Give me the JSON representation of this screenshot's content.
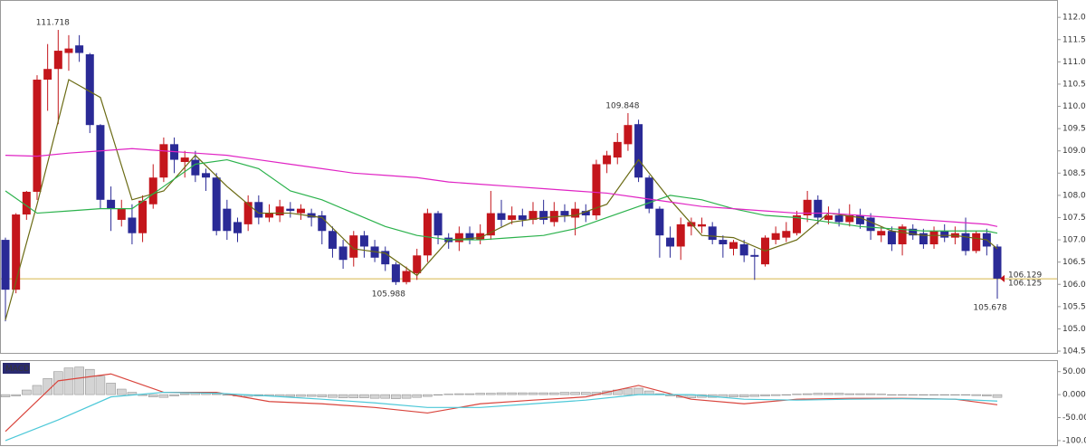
{
  "chart_data": [
    {
      "type": "candlestick",
      "up_color": "#c4161c",
      "down_color": "#2a2a96",
      "ylim": [
        104.46,
        112.39
      ],
      "yticks": [
        {
          "value": 104.5,
          "label": "104.500"
        },
        {
          "value": 105,
          "label": "105.000"
        },
        {
          "value": 105.5,
          "label": "105.500"
        },
        {
          "value": 106,
          "label": "106.000"
        },
        {
          "value": 106.5,
          "label": "106.500"
        },
        {
          "value": 107,
          "label": "107.000"
        },
        {
          "value": 107.5,
          "label": "107.500"
        },
        {
          "value": 108,
          "label": "108.000"
        },
        {
          "value": 108.5,
          "label": "108.500"
        },
        {
          "value": 109,
          "label": "109.000"
        },
        {
          "value": 109.5,
          "label": "109.500"
        },
        {
          "value": 110,
          "label": "110.000"
        },
        {
          "value": 110.5,
          "label": "110.500"
        },
        {
          "value": 111,
          "label": "111.000"
        },
        {
          "value": 111.5,
          "label": "111.500"
        },
        {
          "value": 112,
          "label": "112.000"
        }
      ],
      "open": [
        107.0,
        105.88,
        107.57,
        108.08,
        110.6,
        110.84,
        111.2,
        111.37,
        111.17,
        109.58,
        107.9,
        107.45,
        107.5,
        107.15,
        107.8,
        108.4,
        109.15,
        108.75,
        108.8,
        108.5,
        108.4,
        107.7,
        107.4,
        107.35,
        107.85,
        107.5,
        107.55,
        107.7,
        107.6,
        107.6,
        107.55,
        107.2,
        106.85,
        106.6,
        107.1,
        106.85,
        106.75,
        106.45,
        106.05,
        106.25,
        106.65,
        107.6,
        107.05,
        106.95,
        107.15,
        107.0,
        107.1,
        107.6,
        107.45,
        107.55,
        107.45,
        107.65,
        107.4,
        107.65,
        107.5,
        107.65,
        107.55,
        108.7,
        108.85,
        109.15,
        109.6,
        108.4,
        107.7,
        107.05,
        106.85,
        107.3,
        107.3,
        107.3,
        107.0,
        106.8,
        106.9,
        106.66,
        106.45,
        107.0,
        107.05,
        107.15,
        107.55,
        107.9,
        107.45,
        107.55,
        107.4,
        107.55,
        107.5,
        107.1,
        107.2,
        106.9,
        107.25,
        107.15,
        106.9,
        107.2,
        107.05,
        107.15,
        106.75,
        107.15,
        106.85
      ],
      "high": [
        107.05,
        107.6,
        108.1,
        110.7,
        111.4,
        111.718,
        111.6,
        111.6,
        111.2,
        109.6,
        108.2,
        107.9,
        107.8,
        108.0,
        108.7,
        109.3,
        109.3,
        109.0,
        109.0,
        108.6,
        108.5,
        107.9,
        107.5,
        108.0,
        108.0,
        107.8,
        107.9,
        107.85,
        107.8,
        107.7,
        107.65,
        107.3,
        107.0,
        107.2,
        107.2,
        107.0,
        106.85,
        106.5,
        106.4,
        106.8,
        107.7,
        107.65,
        107.15,
        107.3,
        107.3,
        107.35,
        108.1,
        107.9,
        107.75,
        107.7,
        107.85,
        107.9,
        107.85,
        107.8,
        107.85,
        107.8,
        108.8,
        109.0,
        109.4,
        109.848,
        109.7,
        108.45,
        107.75,
        107.3,
        107.5,
        107.5,
        107.5,
        107.4,
        107.1,
        107.0,
        107.0,
        106.8,
        107.1,
        107.3,
        107.4,
        107.65,
        108.1,
        108.0,
        107.75,
        107.7,
        107.8,
        107.7,
        107.6,
        107.3,
        107.3,
        107.35,
        107.35,
        107.25,
        107.3,
        107.35,
        107.3,
        107.5,
        107.2,
        107.25,
        106.9
      ],
      "low": [
        105.17,
        105.8,
        107.45,
        107.9,
        109.9,
        109.6,
        110.8,
        111.0,
        109.4,
        107.7,
        107.2,
        107.3,
        106.9,
        106.95,
        107.7,
        108.3,
        108.5,
        108.4,
        108.3,
        108.1,
        107.1,
        107.0,
        106.95,
        107.2,
        107.35,
        107.4,
        107.4,
        107.5,
        107.45,
        107.3,
        106.9,
        106.6,
        106.35,
        106.4,
        106.6,
        106.5,
        106.3,
        105.988,
        106.0,
        106.1,
        106.5,
        106.9,
        106.8,
        106.75,
        106.9,
        106.9,
        107.0,
        107.3,
        107.35,
        107.3,
        107.35,
        107.35,
        107.3,
        107.4,
        107.1,
        107.4,
        107.45,
        108.5,
        108.7,
        109.0,
        108.3,
        107.6,
        106.6,
        106.6,
        106.55,
        107.1,
        107.15,
        106.9,
        106.6,
        106.65,
        106.5,
        106.1,
        106.4,
        106.9,
        106.95,
        107.1,
        107.4,
        107.35,
        107.35,
        107.3,
        107.3,
        107.25,
        107.0,
        106.95,
        106.75,
        106.65,
        107.0,
        106.8,
        106.8,
        106.95,
        106.9,
        106.65,
        106.7,
        106.65,
        105.678
      ],
      "close": [
        105.88,
        107.57,
        108.08,
        110.6,
        110.84,
        111.25,
        111.3,
        111.2,
        109.58,
        107.9,
        107.7,
        107.7,
        107.15,
        107.88,
        108.4,
        109.15,
        108.8,
        108.85,
        108.45,
        108.4,
        107.2,
        107.2,
        107.15,
        107.85,
        107.5,
        107.6,
        107.75,
        107.65,
        107.7,
        107.5,
        107.2,
        106.8,
        106.55,
        107.1,
        106.85,
        106.6,
        106.45,
        106.05,
        106.3,
        106.65,
        107.6,
        107.1,
        106.95,
        107.15,
        107.0,
        107.15,
        107.6,
        107.45,
        107.55,
        107.45,
        107.65,
        107.45,
        107.65,
        107.55,
        107.7,
        107.55,
        108.7,
        108.9,
        109.2,
        109.58,
        108.4,
        107.7,
        107.1,
        106.85,
        107.35,
        107.4,
        107.35,
        107.0,
        106.9,
        106.95,
        106.65,
        106.62,
        107.05,
        107.15,
        107.2,
        107.55,
        107.9,
        107.5,
        107.55,
        107.4,
        107.55,
        107.35,
        107.2,
        107.2,
        106.9,
        107.3,
        107.1,
        106.9,
        107.2,
        107.05,
        107.15,
        106.75,
        107.15,
        106.85,
        106.129
      ],
      "price_line": {
        "value": 106.125,
        "color": "#d8b84a"
      },
      "lines": {
        "x": [
          0,
          3,
          6,
          9,
          12,
          15,
          18,
          21,
          24,
          27,
          30,
          33,
          36,
          39,
          42,
          45,
          48,
          51,
          54,
          57,
          60,
          63,
          66,
          69,
          72,
          75,
          78,
          81,
          84,
          87,
          90,
          93,
          94
        ],
        "series": [
          {
            "color": "#6b6b14",
            "values": [
              105.2,
              107.8,
              110.6,
              110.2,
              107.9,
              108.1,
              108.9,
              108.2,
              107.6,
              107.6,
              107.5,
              106.8,
              106.7,
              106.2,
              107.0,
              107.05,
              107.4,
              107.5,
              107.55,
              107.8,
              108.8,
              107.9,
              107.1,
              107.05,
              106.75,
              107.0,
              107.6,
              107.5,
              107.2,
              107.1,
              107.1,
              107.0,
              106.8
            ]
          },
          {
            "color": "#2bb24c",
            "values": [
              108.1,
              107.6,
              107.65,
              107.7,
              107.7,
              108.2,
              108.7,
              108.8,
              108.6,
              108.1,
              107.9,
              107.6,
              107.3,
              107.1,
              107.0,
              107.0,
              107.05,
              107.1,
              107.25,
              107.5,
              107.75,
              108.0,
              107.9,
              107.7,
              107.55,
              107.5,
              107.4,
              107.3,
              107.25,
              107.2,
              107.2,
              107.2,
              107.15
            ]
          },
          {
            "color": "#e024c4",
            "values": [
              108.9,
              108.88,
              108.95,
              109.0,
              109.05,
              109.0,
              108.95,
              108.9,
              108.8,
              108.7,
              108.6,
              108.5,
              108.45,
              108.4,
              108.3,
              108.25,
              108.2,
              108.15,
              108.1,
              108.05,
              107.95,
              107.85,
              107.75,
              107.7,
              107.65,
              107.6,
              107.6,
              107.55,
              107.5,
              107.45,
              107.4,
              107.35,
              107.3
            ]
          }
        ]
      }
    },
    {
      "type": "macd",
      "title": "MACD",
      "ylim": [
        -110,
        75
      ],
      "yticks": [
        {
          "value": 50,
          "label": "50.0000"
        },
        {
          "value": 0,
          "label": "0.0000"
        },
        {
          "value": -50,
          "label": "-50.0000"
        },
        {
          "value": -100,
          "label": "-100.0000"
        }
      ],
      "histogram": {
        "color": "#d4d4d4",
        "values": [
          -5,
          -3,
          10,
          20,
          35,
          50,
          58,
          60,
          55,
          40,
          25,
          12,
          5,
          -2,
          -5,
          -6,
          -3,
          2,
          4,
          3,
          2,
          -1,
          -3,
          -4,
          -3,
          -3,
          -4,
          -4,
          -4,
          -4,
          -5,
          -6,
          -7,
          -7,
          -7,
          -8,
          -8,
          -9,
          -8,
          -6,
          -4,
          -1,
          1,
          2,
          2,
          3,
          3,
          4,
          4,
          4,
          4,
          4,
          4,
          5,
          5,
          5,
          5,
          8,
          10,
          13,
          14,
          8,
          2,
          -3,
          -6,
          -7,
          -6,
          -6,
          -6,
          -5,
          -5,
          -4,
          -3,
          -2,
          0,
          1,
          2,
          3,
          3,
          3,
          2,
          2,
          2,
          1,
          0,
          0,
          0,
          -1,
          -1,
          -1,
          0,
          -1,
          -2,
          -3,
          -6
        ]
      },
      "lines": {
        "x": [
          0,
          5,
          10,
          15,
          20,
          25,
          30,
          35,
          40,
          45,
          50,
          55,
          60,
          65,
          70,
          75,
          80,
          85,
          90,
          94
        ],
        "series": [
          {
            "color": "#d9443c",
            "values": [
              -80,
              30,
              45,
              5,
              5,
              -15,
              -20,
              -28,
              -40,
              -20,
              -12,
              -5,
              20,
              -10,
              -20,
              -10,
              -8,
              -8,
              -10,
              -22
            ]
          },
          {
            "color": "#4cc8d8",
            "values": [
              -100,
              -55,
              -5,
              5,
              3,
              -3,
              -10,
              -18,
              -28,
              -28,
              -20,
              -12,
              0,
              0,
              -10,
              -12,
              -10,
              -9,
              -10,
              -14
            ]
          }
        ]
      }
    }
  ]
}
